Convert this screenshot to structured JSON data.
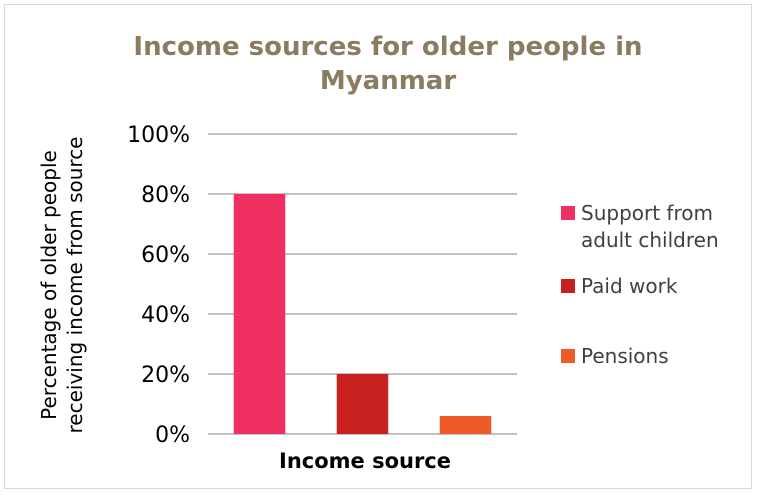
{
  "chart_data": {
    "type": "bar",
    "title": "Income sources for older people in Myanmar",
    "title_lines": [
      "Income sources for older people in",
      "Myanmar"
    ],
    "xlabel": "Income source",
    "ylabel": "Percentage of older people receiving income from source",
    "ylabel_lines": [
      "Percentage of older people",
      "receiving income from source"
    ],
    "categories": [
      "Support from adult children",
      "Paid work",
      "Pensions"
    ],
    "values": [
      80,
      20,
      6
    ],
    "colors": [
      "#f03060",
      "#c8201f",
      "#f05a28"
    ],
    "ylim": [
      0,
      100
    ],
    "yticks": [
      0,
      20,
      40,
      60,
      80,
      100
    ],
    "ytick_labels": [
      "0%",
      "20%",
      "40%",
      "60%",
      "80%",
      "100%"
    ],
    "grid": true,
    "legend_position": "right",
    "legend": [
      {
        "lines": [
          "Support from",
          "adult children"
        ],
        "color": "#f03060"
      },
      {
        "lines": [
          "Paid work"
        ],
        "color": "#c8201f"
      },
      {
        "lines": [
          "Pensions"
        ],
        "color": "#f05a28"
      }
    ]
  }
}
